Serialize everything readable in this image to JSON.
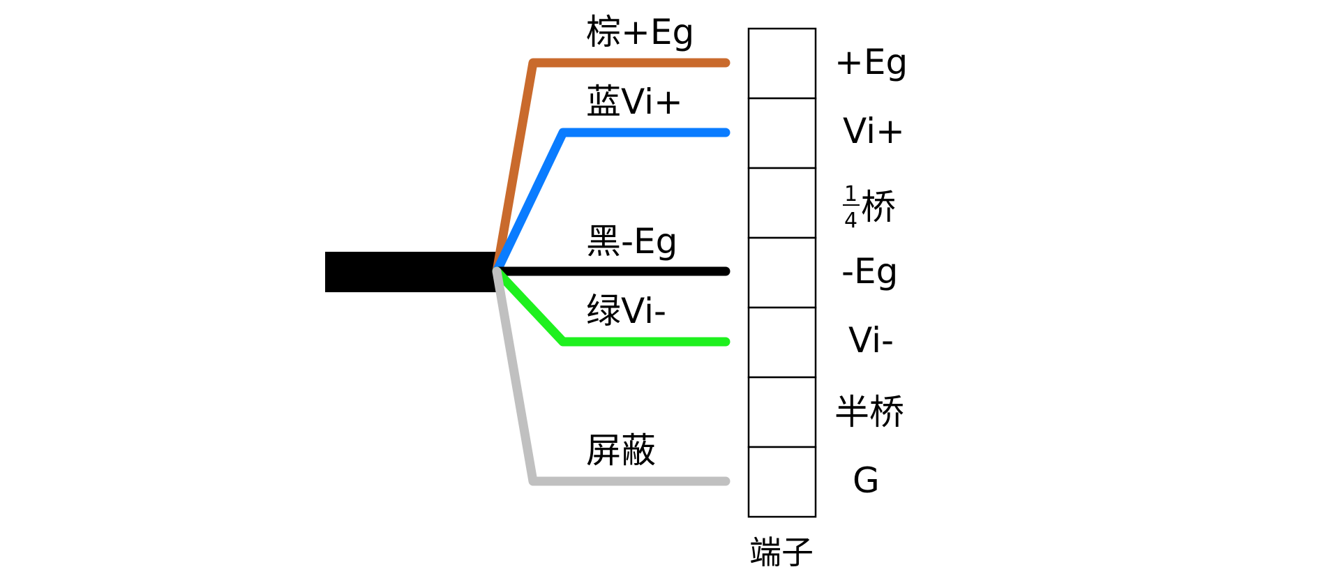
{
  "wires": [
    {
      "label": "棕+Eg",
      "color": "#c96a2c",
      "name": "wire-brown"
    },
    {
      "label": "蓝Vi+",
      "color": "#0a7cff",
      "name": "wire-blue"
    },
    {
      "label": "黑-Eg",
      "color": "#000000",
      "name": "wire-black"
    },
    {
      "label": "绿Vi-",
      "color": "#1ef01e",
      "name": "wire-green"
    },
    {
      "label": "屏蔽",
      "color": "#c0c0c0",
      "name": "wire-shield"
    }
  ],
  "terminals": {
    "caption": "端子",
    "labels": [
      {
        "text": "+Eg"
      },
      {
        "text": "Vi+"
      },
      {
        "frac_num": "1",
        "frac_den": "4",
        "text": "桥"
      },
      {
        "text": "-Eg"
      },
      {
        "text": "Vi-"
      },
      {
        "text": "半桥"
      },
      {
        "text": "G"
      }
    ]
  },
  "cable_color": "#000000"
}
